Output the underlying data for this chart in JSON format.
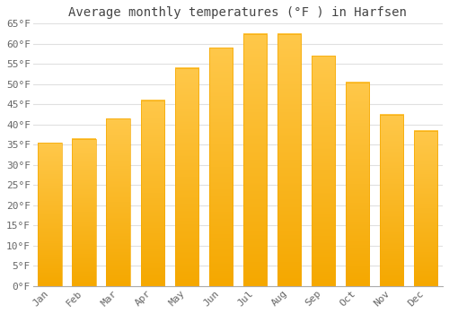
{
  "title": "Average monthly temperatures (°F ) in Harfsen",
  "months": [
    "Jan",
    "Feb",
    "Mar",
    "Apr",
    "May",
    "Jun",
    "Jul",
    "Aug",
    "Sep",
    "Oct",
    "Nov",
    "Dec"
  ],
  "values": [
    35.5,
    36.5,
    41.5,
    46.0,
    54.0,
    59.0,
    62.5,
    62.5,
    57.0,
    50.5,
    42.5,
    38.5
  ],
  "bar_color_top": "#FFC84A",
  "bar_color_bottom": "#F5A800",
  "ylim": [
    0,
    65
  ],
  "yticks": [
    0,
    5,
    10,
    15,
    20,
    25,
    30,
    35,
    40,
    45,
    50,
    55,
    60,
    65
  ],
  "background_color": "#FFFFFF",
  "plot_bg_color": "#FFFFFF",
  "grid_color": "#E0E0E0",
  "title_fontsize": 10,
  "tick_fontsize": 8,
  "font_family": "monospace",
  "title_color": "#444444",
  "tick_color": "#666666"
}
